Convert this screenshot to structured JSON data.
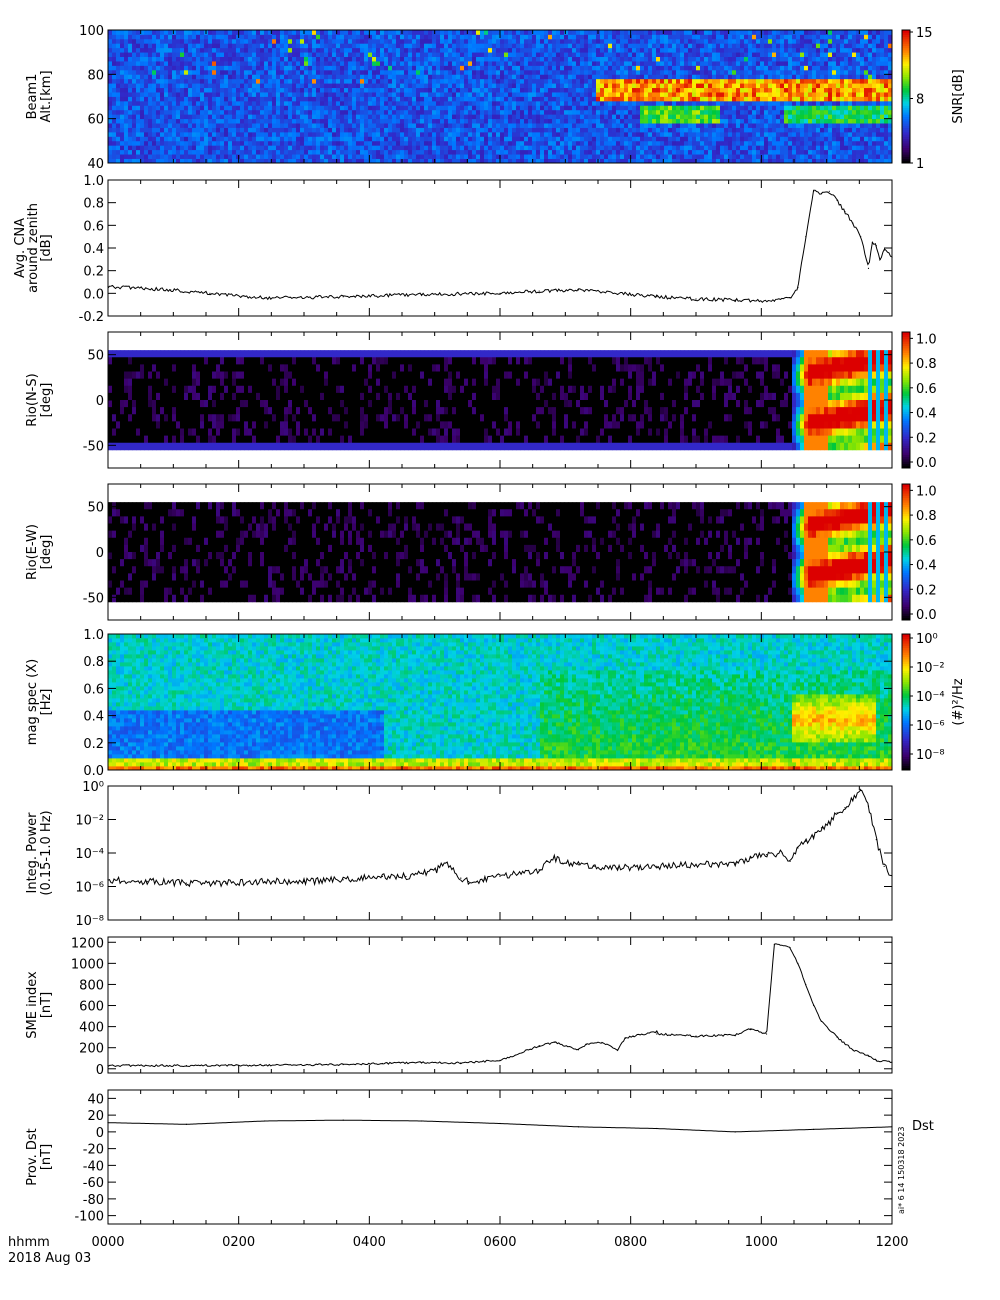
{
  "figure": {
    "footer_time_label": "hhmm",
    "footer_date_label": "2018 Aug 03",
    "x_ticks": [
      "0000",
      "0200",
      "0400",
      "0600",
      "0800",
      "1000",
      "1200"
    ],
    "side_stamp": "ai* 6 14 150318 2023"
  },
  "chart_data": [
    {
      "id": "beam1",
      "type": "heatmap",
      "ylabel": [
        "Beam1",
        "Alt.[km]"
      ],
      "yticks": [
        "40",
        "60",
        "80",
        "100"
      ],
      "ylim": [
        40,
        100
      ],
      "colorbar": {
        "label": "SNR[dB]",
        "ticks": [
          "1",
          "8",
          "15"
        ],
        "range": [
          1,
          15
        ]
      },
      "features": [
        {
          "t_start": 0.62,
          "t_end": 1.0,
          "alt_low": 68,
          "alt_high": 78,
          "level": 14
        },
        {
          "t_start": 0.68,
          "t_end": 0.78,
          "alt_low": 58,
          "alt_high": 66,
          "level": 10
        },
        {
          "t_start": 0.86,
          "t_end": 1.0,
          "alt_low": 58,
          "alt_high": 66,
          "level": 9
        }
      ]
    },
    {
      "id": "cna",
      "type": "line",
      "ylabel": [
        "Avg. CNA",
        "around zenith",
        "[dB]"
      ],
      "yticks": [
        "-0.2",
        "0.0",
        "0.2",
        "0.4",
        "0.6",
        "0.8",
        "1.0"
      ],
      "ylim": [
        -0.2,
        1.0
      ],
      "x": [
        0,
        0.08,
        0.13,
        0.2,
        0.3,
        0.4,
        0.5,
        0.55,
        0.6,
        0.7,
        0.75,
        0.8,
        0.85,
        0.87,
        0.88,
        0.89,
        0.9,
        0.91,
        0.92,
        0.93,
        0.94,
        0.95,
        0.96,
        0.97,
        0.975,
        0.98,
        0.985,
        0.99,
        1.0
      ],
      "y": [
        0.06,
        0.03,
        0.0,
        -0.04,
        -0.03,
        -0.01,
        0.0,
        0.02,
        0.03,
        -0.03,
        -0.05,
        -0.06,
        -0.07,
        -0.04,
        0.05,
        0.5,
        0.9,
        0.88,
        0.9,
        0.82,
        0.72,
        0.62,
        0.5,
        0.22,
        0.45,
        0.42,
        0.3,
        0.38,
        0.32
      ]
    },
    {
      "id": "rio_ns",
      "type": "heatmap",
      "ylabel": [
        "Rio(N-S)",
        "[deg]"
      ],
      "yticks": [
        "-50",
        "0",
        "50"
      ],
      "ylim": [
        -75,
        75
      ],
      "data_ylim": [
        -55,
        55
      ],
      "colorbar": {
        "label": "",
        "ticks": [
          "0.0",
          "0.2",
          "0.4",
          "0.6",
          "0.8",
          "1.0"
        ],
        "range": [
          0,
          1.1
        ]
      },
      "onset": 0.87
    },
    {
      "id": "rio_ew",
      "type": "heatmap",
      "ylabel": [
        "Rio(E-W)",
        "[deg]"
      ],
      "yticks": [
        "-50",
        "0",
        "50"
      ],
      "ylim": [
        -75,
        75
      ],
      "data_ylim": [
        -55,
        55
      ],
      "colorbar": {
        "label": "",
        "ticks": [
          "0.0",
          "0.2",
          "0.4",
          "0.6",
          "0.8",
          "1.0"
        ],
        "range": [
          0,
          1.1
        ]
      },
      "onset": 0.87
    },
    {
      "id": "magspec",
      "type": "heatmap",
      "ylabel": [
        "mag spec (X)",
        "[Hz]"
      ],
      "yticks": [
        "0.0",
        "0.2",
        "0.4",
        "0.6",
        "0.8",
        "1.0"
      ],
      "ylim": [
        0,
        1.0
      ],
      "colorbar": {
        "label": "(#)²/Hz",
        "ticks": [
          "10⁻⁸",
          "10⁻⁶",
          "10⁻⁴",
          "10⁻²",
          "10⁰"
        ],
        "range": [
          -9,
          1
        ]
      }
    },
    {
      "id": "integ_power",
      "type": "line",
      "yscale": "log",
      "ylabel": [
        "Integ. Power",
        "(0.15-1.0 Hz)"
      ],
      "yticks": [
        "10⁻⁸",
        "10⁻⁶",
        "10⁻⁴",
        "10⁻²",
        "10⁰"
      ],
      "ylim": [
        -8,
        0
      ],
      "x": [
        0,
        0.05,
        0.1,
        0.15,
        0.2,
        0.25,
        0.3,
        0.35,
        0.38,
        0.4,
        0.42,
        0.43,
        0.45,
        0.46,
        0.48,
        0.5,
        0.55,
        0.56,
        0.57,
        0.58,
        0.6,
        0.62,
        0.65,
        0.7,
        0.75,
        0.8,
        0.82,
        0.84,
        0.86,
        0.87,
        0.88,
        0.89,
        0.9,
        0.91,
        0.92,
        0.93,
        0.94,
        0.95,
        0.96,
        0.97,
        0.98,
        0.99,
        1.0
      ],
      "y": [
        -5.6,
        -5.7,
        -5.8,
        -5.8,
        -5.7,
        -5.7,
        -5.6,
        -5.4,
        -5.4,
        -5.2,
        -5.0,
        -4.6,
        -5.5,
        -5.7,
        -5.6,
        -5.4,
        -5.0,
        -4.5,
        -4.3,
        -4.6,
        -4.7,
        -4.8,
        -4.9,
        -4.8,
        -4.7,
        -4.6,
        -4.3,
        -4.1,
        -4.0,
        -4.5,
        -3.7,
        -3.3,
        -3.0,
        -2.5,
        -2.2,
        -1.6,
        -1.3,
        -0.8,
        -0.2,
        -1.2,
        -3.2,
        -4.8,
        -5.4
      ]
    },
    {
      "id": "sme",
      "type": "line",
      "ylabel": [
        "SME index",
        "[nT]"
      ],
      "yticks": [
        "0",
        "200",
        "400",
        "600",
        "800",
        "1000",
        "1200"
      ],
      "ylim": [
        -40,
        1250
      ],
      "x": [
        0,
        0.1,
        0.2,
        0.3,
        0.35,
        0.4,
        0.45,
        0.5,
        0.52,
        0.55,
        0.57,
        0.6,
        0.61,
        0.63,
        0.65,
        0.66,
        0.67,
        0.7,
        0.7,
        0.75,
        0.8,
        0.82,
        0.84,
        0.85,
        0.87,
        0.88,
        0.89,
        0.9,
        0.91,
        0.93,
        0.95,
        0.97,
        0.98,
        1.0
      ],
      "y": [
        30,
        30,
        35,
        40,
        50,
        60,
        55,
        80,
        130,
        220,
        250,
        180,
        230,
        250,
        180,
        290,
        310,
        350,
        330,
        310,
        320,
        380,
        330,
        1180,
        1150,
        1000,
        800,
        600,
        450,
        300,
        180,
        120,
        80,
        60
      ]
    },
    {
      "id": "dst",
      "type": "line",
      "ylabel": [
        "Prov. Dst",
        "[nT]"
      ],
      "yticks": [
        "-100",
        "-80",
        "-60",
        "-40",
        "-20",
        "0",
        "20",
        "40"
      ],
      "ylim": [
        -110,
        50
      ],
      "legend": "Dst",
      "x": [
        0,
        0.1,
        0.2,
        0.3,
        0.4,
        0.5,
        0.6,
        0.7,
        0.8,
        0.9,
        1.0
      ],
      "y": [
        11,
        9,
        13,
        14,
        13,
        10,
        6,
        4,
        0,
        3,
        6
      ]
    }
  ]
}
